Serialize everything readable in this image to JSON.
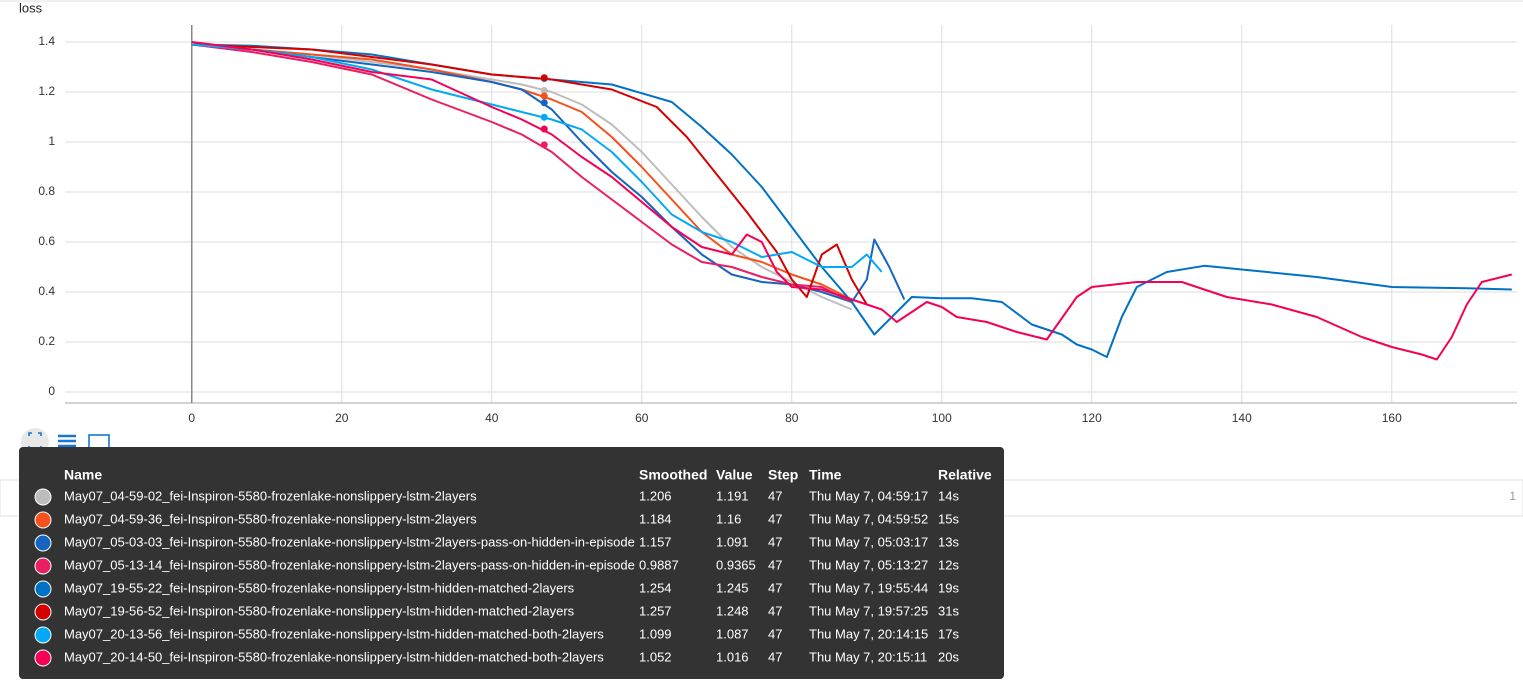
{
  "chart_data": {
    "type": "line",
    "title": "loss",
    "xlim": [
      -16.9,
      176.7
    ],
    "ylim": [
      -0.044,
      1.468
    ],
    "xticks": [
      0,
      20,
      40,
      60,
      80,
      100,
      120,
      140,
      160
    ],
    "yticks": [
      0,
      0.2,
      0.4,
      0.6,
      0.8,
      1,
      1.2,
      1.4
    ],
    "grid": true,
    "series": [
      {
        "name": "May07_04-59-02_fei-Inspiron-5580-frozenlake-nonslippery-lstm-2layers",
        "color": "#bdbdbd",
        "x": [
          0,
          8,
          16,
          24,
          32,
          40,
          44,
          48,
          52,
          56,
          60,
          64,
          68,
          72,
          76,
          80,
          84,
          88
        ],
        "values": [
          1.39,
          1.37,
          1.35,
          1.32,
          1.29,
          1.25,
          1.23,
          1.2,
          1.15,
          1.07,
          0.96,
          0.83,
          0.7,
          0.58,
          0.5,
          0.44,
          0.38,
          0.33
        ]
      },
      {
        "name": "May07_04-59-36_fei-Inspiron-5580-frozenlake-nonslippery-lstm-2layers",
        "color": "#f4511e",
        "x": [
          0,
          8,
          16,
          24,
          32,
          40,
          44,
          48,
          52,
          56,
          60,
          64,
          68,
          72,
          76,
          80,
          84,
          88
        ],
        "values": [
          1.39,
          1.37,
          1.35,
          1.33,
          1.29,
          1.24,
          1.21,
          1.17,
          1.12,
          1.02,
          0.9,
          0.77,
          0.64,
          0.55,
          0.52,
          0.47,
          0.43,
          0.37
        ]
      },
      {
        "name": "May07_05-03-03_fei-Inspiron-5580-frozenlake-nonslippery-lstm-2layers-pass-on-hidden-in-episode",
        "color": "#1565c0",
        "x": [
          0,
          8,
          16,
          24,
          32,
          40,
          44,
          48,
          52,
          56,
          60,
          64,
          68,
          72,
          76,
          80,
          84,
          88,
          90,
          91,
          93,
          95
        ],
        "values": [
          1.39,
          1.37,
          1.34,
          1.31,
          1.28,
          1.24,
          1.21,
          1.13,
          1.0,
          0.88,
          0.78,
          0.66,
          0.55,
          0.47,
          0.44,
          0.43,
          0.4,
          0.36,
          0.45,
          0.61,
          0.5,
          0.37
        ]
      },
      {
        "name": "May07_05-13-14_fei-Inspiron-5580-frozenlake-nonslippery-lstm-2layers-pass-on-hidden-in-episode",
        "color": "#e91e63",
        "x": [
          0,
          8,
          16,
          24,
          32,
          40,
          44,
          48,
          52,
          56,
          60,
          64,
          68,
          72,
          76,
          80,
          84,
          88
        ],
        "values": [
          1.39,
          1.36,
          1.32,
          1.27,
          1.17,
          1.08,
          1.03,
          0.96,
          0.86,
          0.77,
          0.68,
          0.59,
          0.52,
          0.5,
          0.46,
          0.43,
          0.42,
          0.36
        ]
      },
      {
        "name": "May07_19-55-22_fei-Inspiron-5580-frozenlake-nonslippery-lstm-hidden-matched-2layers",
        "color": "#0072c6",
        "x": [
          0,
          8,
          16,
          24,
          32,
          40,
          44,
          48,
          56,
          64,
          68,
          72,
          76,
          80,
          84,
          88,
          91,
          94,
          96,
          100,
          104,
          108,
          112,
          116,
          118,
          120,
          122,
          124,
          126,
          130,
          135,
          140,
          150,
          160,
          170,
          176
        ],
        "values": [
          1.39,
          1.385,
          1.37,
          1.35,
          1.31,
          1.27,
          1.26,
          1.25,
          1.23,
          1.16,
          1.06,
          0.95,
          0.82,
          0.66,
          0.5,
          0.36,
          0.23,
          0.32,
          0.38,
          0.375,
          0.375,
          0.36,
          0.27,
          0.23,
          0.19,
          0.17,
          0.14,
          0.3,
          0.42,
          0.48,
          0.505,
          0.49,
          0.46,
          0.42,
          0.415,
          0.41
        ]
      },
      {
        "name": "May07_19-56-52_fei-Inspiron-5580-frozenlake-nonslippery-lstm-hidden-matched-2layers",
        "color": "#d50000",
        "x": [
          0,
          8,
          16,
          24,
          32,
          40,
          44,
          48,
          56,
          62,
          66,
          70,
          74,
          78,
          80,
          82,
          84,
          86,
          88,
          90
        ],
        "values": [
          1.39,
          1.38,
          1.37,
          1.34,
          1.31,
          1.27,
          1.26,
          1.25,
          1.21,
          1.14,
          1.02,
          0.87,
          0.72,
          0.56,
          0.45,
          0.38,
          0.55,
          0.59,
          0.45,
          0.35
        ]
      },
      {
        "name": "May07_20-13-56_fei-Inspiron-5580-frozenlake-nonslippery-lstm-hidden-matched-both-2layers",
        "color": "#03a9f4",
        "x": [
          0,
          8,
          16,
          24,
          32,
          40,
          44,
          48,
          52,
          56,
          60,
          64,
          68,
          72,
          76,
          80,
          84,
          88,
          90,
          92
        ],
        "values": [
          1.39,
          1.37,
          1.34,
          1.29,
          1.21,
          1.15,
          1.12,
          1.09,
          1.05,
          0.96,
          0.84,
          0.71,
          0.64,
          0.6,
          0.54,
          0.56,
          0.5,
          0.5,
          0.55,
          0.48
        ]
      },
      {
        "name": "May07_20-14-50_fei-Inspiron-5580-frozenlake-nonslippery-lstm-hidden-matched-both-2layers",
        "color": "#f50057",
        "x": [
          0,
          8,
          16,
          24,
          32,
          40,
          44,
          48,
          52,
          56,
          60,
          64,
          68,
          72,
          74,
          76,
          78,
          80,
          84,
          88,
          92,
          94,
          98,
          100,
          102,
          106,
          110,
          114,
          118,
          120,
          126,
          132,
          138,
          144,
          150,
          156,
          160,
          164,
          166,
          168,
          170,
          172,
          176
        ],
        "values": [
          1.4,
          1.37,
          1.33,
          1.28,
          1.25,
          1.14,
          1.09,
          1.03,
          0.94,
          0.86,
          0.76,
          0.66,
          0.58,
          0.55,
          0.63,
          0.6,
          0.48,
          0.42,
          0.41,
          0.37,
          0.33,
          0.28,
          0.36,
          0.34,
          0.3,
          0.28,
          0.24,
          0.21,
          0.38,
          0.42,
          0.44,
          0.44,
          0.38,
          0.35,
          0.3,
          0.22,
          0.18,
          0.15,
          0.13,
          0.22,
          0.35,
          0.44,
          0.47
        ]
      }
    ]
  },
  "tooltip": {
    "columns": [
      "Name",
      "Smoothed",
      "Value",
      "Step",
      "Time",
      "Relative"
    ],
    "rows": [
      {
        "smoothed": 1.206,
        "value": 1.191,
        "step": 47,
        "time": "Thu May 7, 04:59:17",
        "relative": "14s"
      },
      {
        "smoothed": 1.184,
        "value": 1.16,
        "step": 47,
        "time": "Thu May 7, 04:59:52",
        "relative": "15s"
      },
      {
        "smoothed": 1.157,
        "value": 1.091,
        "step": 47,
        "time": "Thu May 7, 05:03:17",
        "relative": "13s"
      },
      {
        "smoothed": 0.9887,
        "value": 0.9365,
        "step": 47,
        "time": "Thu May 7, 05:13:27",
        "relative": "12s"
      },
      {
        "smoothed": 1.254,
        "value": 1.245,
        "step": 47,
        "time": "Thu May 7, 19:55:44",
        "relative": "19s"
      },
      {
        "smoothed": 1.257,
        "value": 1.248,
        "step": 47,
        "time": "Thu May 7, 19:57:25",
        "relative": "31s"
      },
      {
        "smoothed": 1.099,
        "value": 1.087,
        "step": 47,
        "time": "Thu May 7, 20:14:15",
        "relative": "17s"
      },
      {
        "smoothed": 1.052,
        "value": 1.016,
        "step": 47,
        "time": "Thu May 7, 20:15:11",
        "relative": "20s"
      }
    ]
  },
  "background_panel": {
    "value_label": "1"
  }
}
